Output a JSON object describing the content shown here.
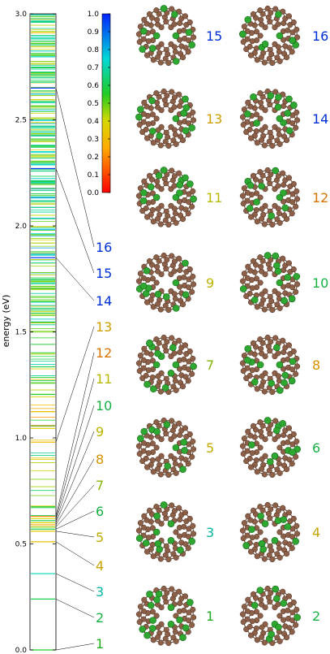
{
  "chart_data": {
    "type": "energy-level-diagram",
    "ylabel": "energy (eV)",
    "ylim": [
      0.0,
      3.0
    ],
    "y_ticks": [
      "0.0",
      "0.5",
      "1.0",
      "1.5",
      "2.0",
      "2.5",
      "3.0"
    ],
    "colorbar": {
      "range": [
        0.0,
        1.0
      ],
      "ticks": [
        "0.0",
        "0.1",
        "0.2",
        "0.3",
        "0.4",
        "0.5",
        "0.6",
        "0.7",
        "0.8",
        "0.9",
        "1.0"
      ]
    },
    "highlighted_states": [
      {
        "label": "1",
        "energy": 0.0,
        "value": 0.55
      },
      {
        "label": "2",
        "energy": 0.24,
        "value": 0.6
      },
      {
        "label": "3",
        "energy": 0.36,
        "value": 0.72
      },
      {
        "label": "4",
        "energy": 0.51,
        "value": 0.32
      },
      {
        "label": "5",
        "energy": 0.56,
        "value": 0.35
      },
      {
        "label": "6",
        "energy": 0.57,
        "value": 0.6
      },
      {
        "label": "7",
        "energy": 0.58,
        "value": 0.45
      },
      {
        "label": "8",
        "energy": 0.59,
        "value": 0.25
      },
      {
        "label": "9",
        "energy": 0.6,
        "value": 0.38
      },
      {
        "label": "10",
        "energy": 0.61,
        "value": 0.6
      },
      {
        "label": "11",
        "energy": 0.62,
        "value": 0.4
      },
      {
        "label": "12",
        "energy": 0.63,
        "value": 0.2
      },
      {
        "label": "13",
        "energy": 0.98,
        "value": 0.3
      },
      {
        "label": "14",
        "energy": 1.85,
        "value": 0.97
      },
      {
        "label": "15",
        "energy": 2.27,
        "value": 0.97
      },
      {
        "label": "16",
        "energy": 2.65,
        "value": 0.97
      }
    ]
  }
}
